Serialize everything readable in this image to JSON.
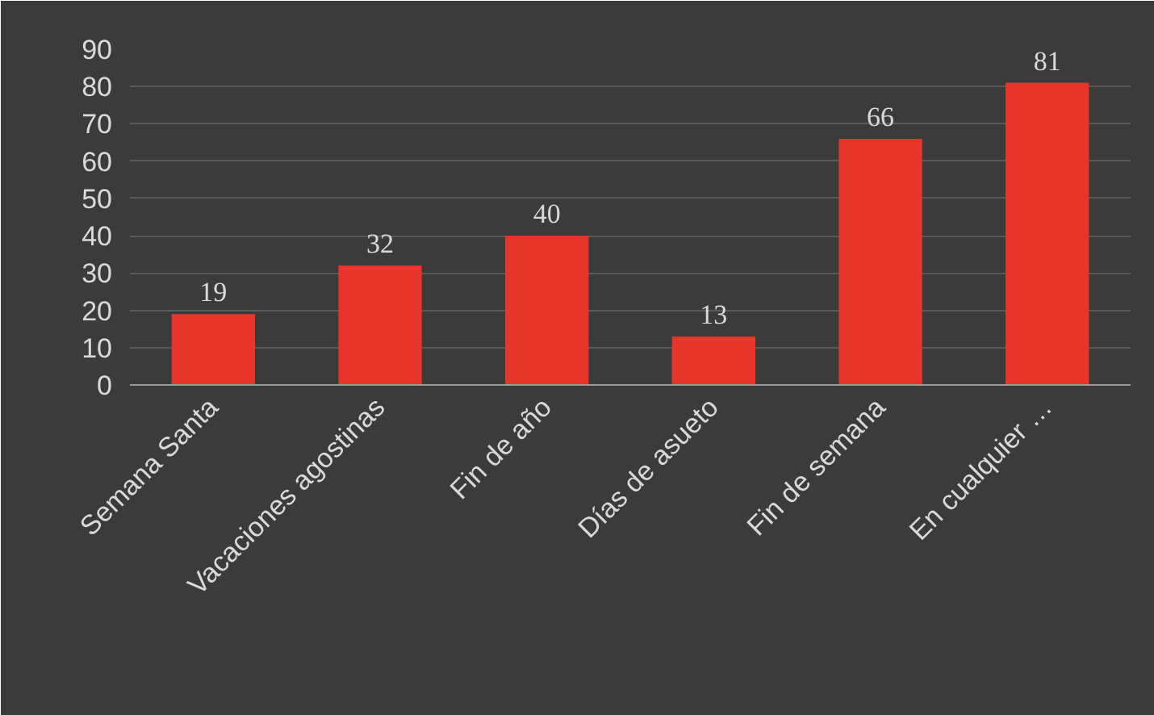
{
  "chart_data": {
    "type": "bar",
    "categories": [
      "Semana Santa",
      "Vacaciones agostinas",
      "Fin de año",
      "Días de asueto",
      "Fin de semana",
      "En cualquier …"
    ],
    "values": [
      19,
      32,
      40,
      13,
      66,
      81
    ],
    "color": "#e8352b",
    "ylim": [
      0,
      90
    ],
    "yticks": [
      0,
      10,
      20,
      30,
      40,
      50,
      60,
      70,
      80,
      90
    ],
    "grid": "y",
    "data_labels": true
  }
}
